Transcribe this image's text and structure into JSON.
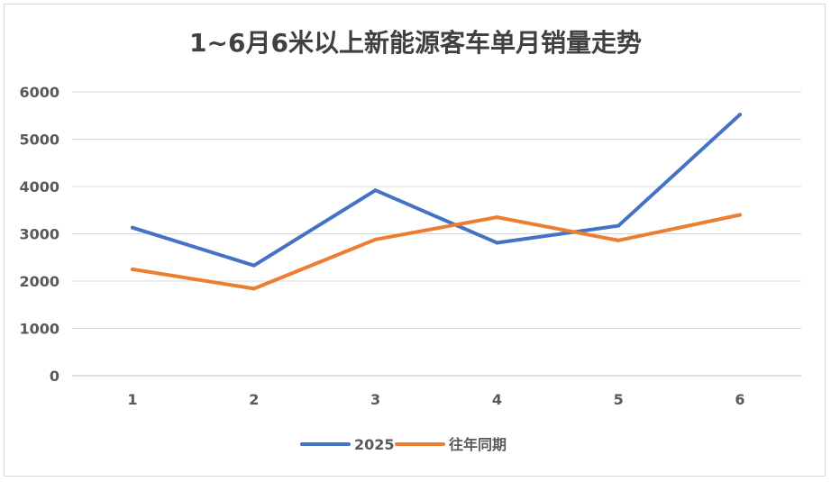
{
  "chart_data": {
    "type": "line",
    "title": "1~6月6米以上新能源客车单月销量走势",
    "categories": [
      "1",
      "2",
      "3",
      "4",
      "5",
      "6"
    ],
    "ylim": [
      0,
      6000
    ],
    "yticks": [
      "0",
      "1000",
      "2000",
      "3000",
      "4000",
      "5000",
      "6000"
    ],
    "grid": "horizontal",
    "legend_position": "bottom",
    "series": [
      {
        "name": "2025",
        "color": "#4472c4",
        "values": [
          3130,
          2330,
          3920,
          2810,
          3170,
          5520
        ]
      },
      {
        "name": "往年同期",
        "color": "#ed7d31",
        "values": [
          2250,
          1840,
          2880,
          3350,
          2860,
          3400
        ]
      }
    ]
  }
}
